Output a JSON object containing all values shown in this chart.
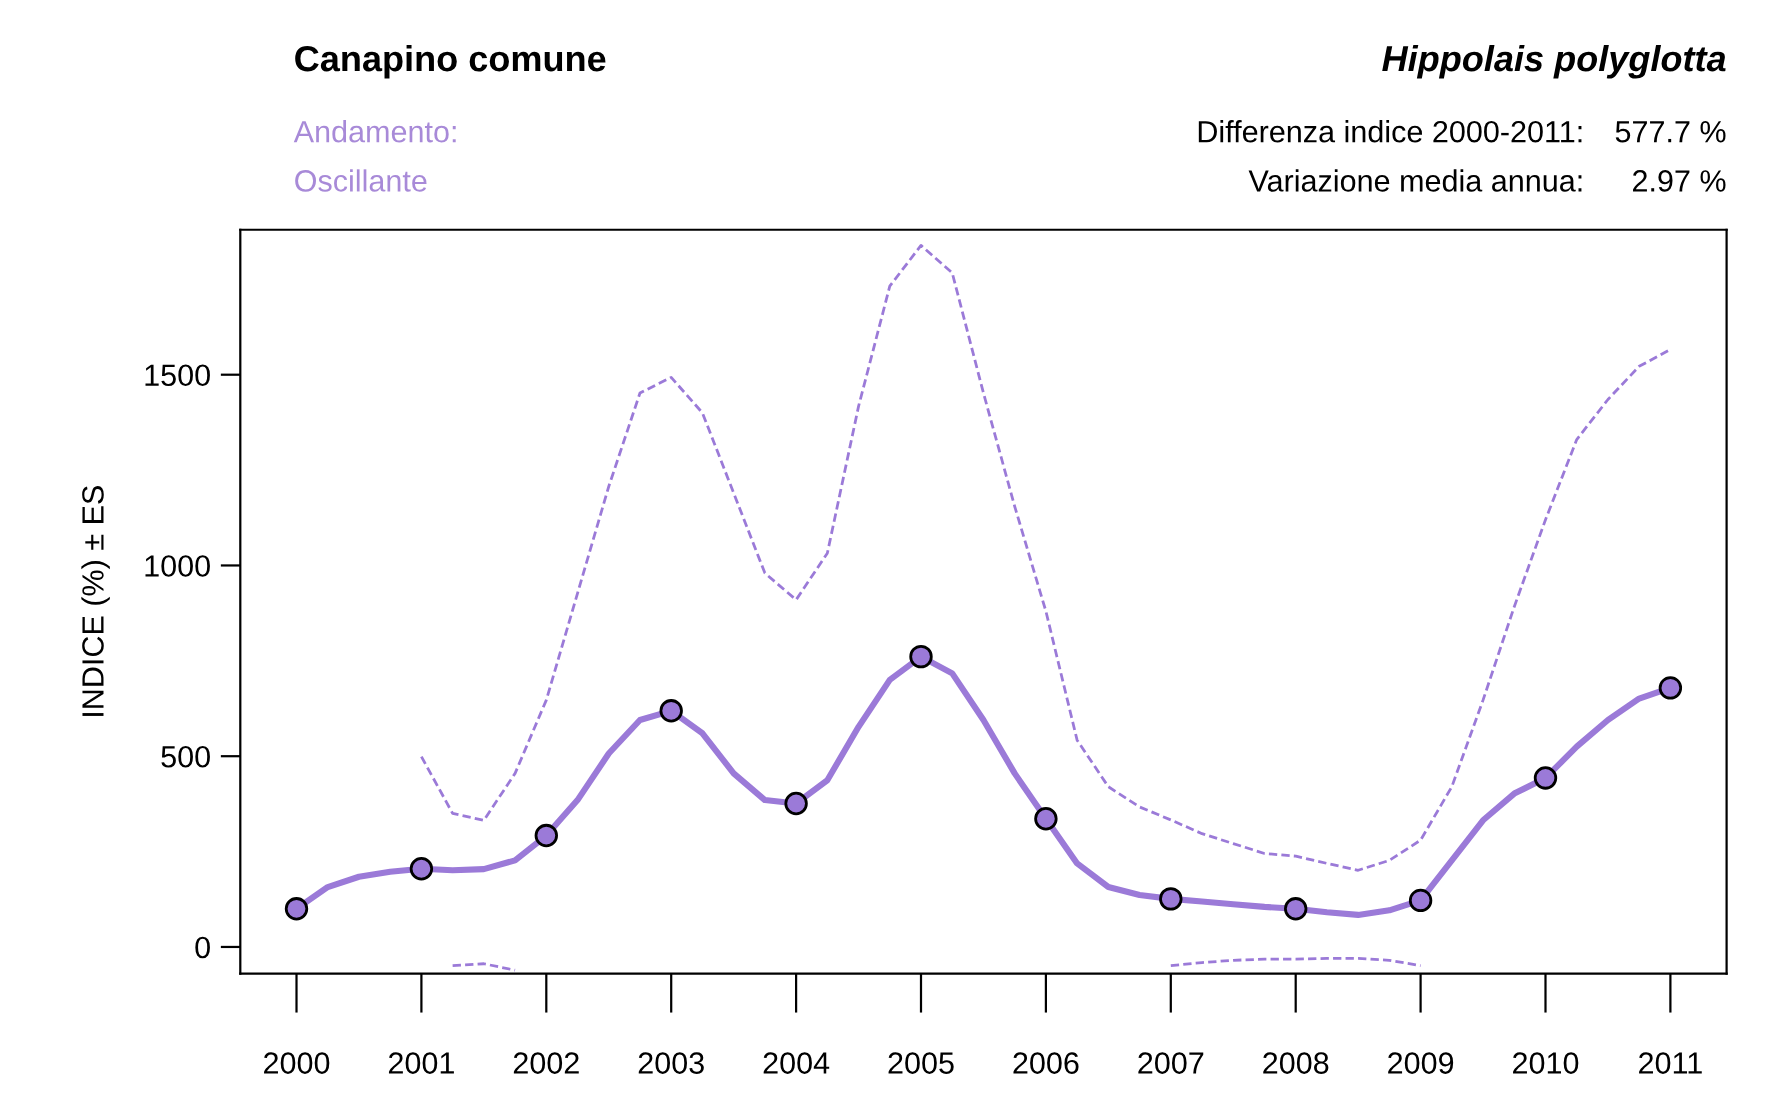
{
  "chart_data": {
    "type": "line",
    "title": "Canapino comune",
    "subtitle": "Hippolais polyglotta",
    "ylabel": "INDICE (%) ± ES",
    "annotations": [
      "Andamento:",
      "Oscillante",
      "Differenza indice 2000-2011:",
      "577.7 %",
      "Variazione media annua:",
      "2.97 %"
    ],
    "series": [
      {
        "color": "#9b7ad8",
        "line_style": "solid",
        "x": [
          2000,
          2000.25,
          2000.5,
          2000.75,
          2001,
          2001.25,
          2001.5,
          2001.75,
          2002,
          2002.25,
          2002.5,
          2002.75,
          2003,
          2003.25,
          2003.5,
          2003.75,
          2004,
          2004.25,
          2004.5,
          2004.75,
          2005,
          2005.25,
          2005.5,
          2005.75,
          2006,
          2006.25,
          2006.5,
          2006.75,
          2007,
          2007.25,
          2007.5,
          2007.75,
          2008,
          2008.25,
          2008.5,
          2008.75,
          2009,
          2009.25,
          2009.5,
          2009.75,
          2010,
          2010.25,
          2010.5,
          2010.75,
          2011
        ],
        "values": [
          100,
          157,
          184,
          197,
          205,
          201,
          204,
          227,
          292,
          385,
          507,
          595,
          619,
          560,
          455,
          385,
          376,
          437,
          577,
          700,
          761,
          717,
          595,
          455,
          336,
          219,
          157,
          136,
          126,
          119,
          112,
          105,
          100,
          91,
          84,
          96,
          122,
          227,
          332,
          402,
          443,
          525,
          595,
          651,
          679
        ]
      },
      {
        "color": "#9b7ad8",
        "line_style": "dashed",
        "x": [
          2001,
          2001.25,
          2001.5,
          2001.75,
          2002,
          2002.25,
          2002.5,
          2002.75,
          2003,
          2003.25,
          2003.5,
          2003.75,
          2004,
          2004.25,
          2004.5,
          2004.75,
          2005,
          2005.25,
          2005.5,
          2005.75,
          2006,
          2006.25,
          2006.5,
          2006.75,
          2007,
          2007.25,
          2007.5,
          2007.75,
          2008,
          2008.25,
          2008.5,
          2008.75,
          2009,
          2009.25,
          2009.5,
          2009.75,
          2010,
          2010.25,
          2010.5,
          2010.75,
          2011
        ],
        "values": [
          499,
          350,
          332,
          455,
          647,
          927,
          1207,
          1452,
          1493,
          1400,
          1190,
          980,
          910,
          1032,
          1417,
          1732,
          1839,
          1767,
          1452,
          1155,
          880,
          542,
          420,
          367,
          333,
          297,
          271,
          245,
          238,
          219,
          201,
          227,
          280,
          420,
          647,
          892,
          1120,
          1330,
          1435,
          1522,
          1566
        ]
      },
      {
        "color": "#9b7ad8",
        "line_style": "dashed",
        "x": [
          2001.25,
          2001.5,
          2001.75,
          2002,
          2007,
          2007.25,
          2007.5,
          2007.75,
          2008,
          2008.25,
          2008.5,
          2008.75,
          2009
        ],
        "values": [
          -49,
          -44,
          -61,
          null,
          -49,
          -41,
          -35,
          -32,
          -32,
          -30,
          -30,
          -35,
          -49
        ]
      },
      {
        "type": "scatter",
        "color": "#9b7ad8",
        "marker": "circle",
        "x": [
          2000,
          2001,
          2002,
          2003,
          2004,
          2005,
          2006,
          2007,
          2008,
          2009,
          2010,
          2011
        ],
        "values": [
          100,
          205,
          292,
          619,
          376,
          761,
          336,
          126,
          100,
          122,
          443,
          679
        ]
      }
    ],
    "xlim": [
      1999.55,
      2011.45
    ],
    "xticks": [
      2000,
      2001,
      2002,
      2003,
      2004,
      2005,
      2006,
      2007,
      2008,
      2009,
      2010,
      2011
    ],
    "ylim": [
      -70,
      1880
    ],
    "yticks": [
      0,
      500,
      1000,
      1500
    ],
    "grid": false,
    "legend": false
  }
}
